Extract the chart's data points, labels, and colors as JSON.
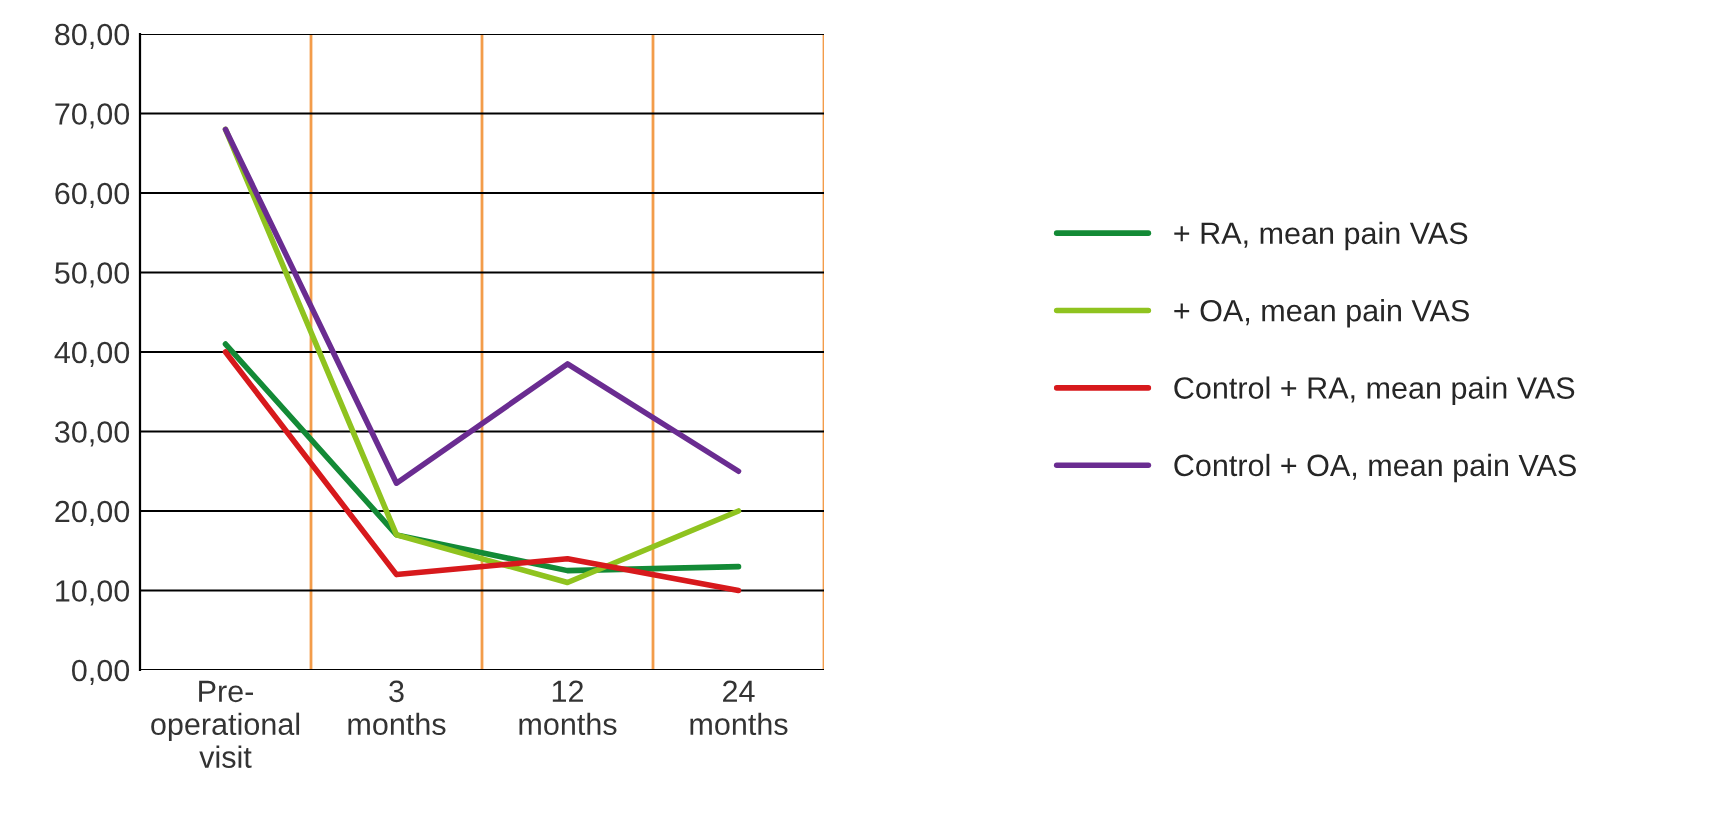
{
  "chart_data": {
    "type": "line",
    "categories": [
      "Pre-operational visit",
      "3 months",
      "12 months",
      "24 months"
    ],
    "series": [
      {
        "name": "+ RA, mean pain VAS",
        "color": "#138a36",
        "values": [
          41,
          17,
          12.5,
          13
        ]
      },
      {
        "name": "+ OA, mean pain VAS",
        "color": "#8fc31f",
        "values": [
          68,
          17,
          11,
          20
        ]
      },
      {
        "name": "Control + RA, mean pain VAS",
        "color": "#d7191c",
        "values": [
          40,
          12,
          14,
          10
        ]
      },
      {
        "name": "Control + OA, mean pain VAS",
        "color": "#6a2c91",
        "values": [
          68,
          23.5,
          38.5,
          25
        ]
      }
    ],
    "ylim": [
      0,
      80
    ],
    "yticks": [
      {
        "value": 0,
        "label": "0,00"
      },
      {
        "value": 10,
        "label": "10,00"
      },
      {
        "value": 20,
        "label": "20,00"
      },
      {
        "value": 30,
        "label": "30,00"
      },
      {
        "value": 40,
        "label": "40,00"
      },
      {
        "value": 50,
        "label": "50,00"
      },
      {
        "value": 60,
        "label": "60,00"
      },
      {
        "value": 70,
        "label": "70,00"
      },
      {
        "value": 80,
        "label": "80,00"
      }
    ],
    "grid": true,
    "legend": "right",
    "marker": "none",
    "line_style": "solid"
  }
}
